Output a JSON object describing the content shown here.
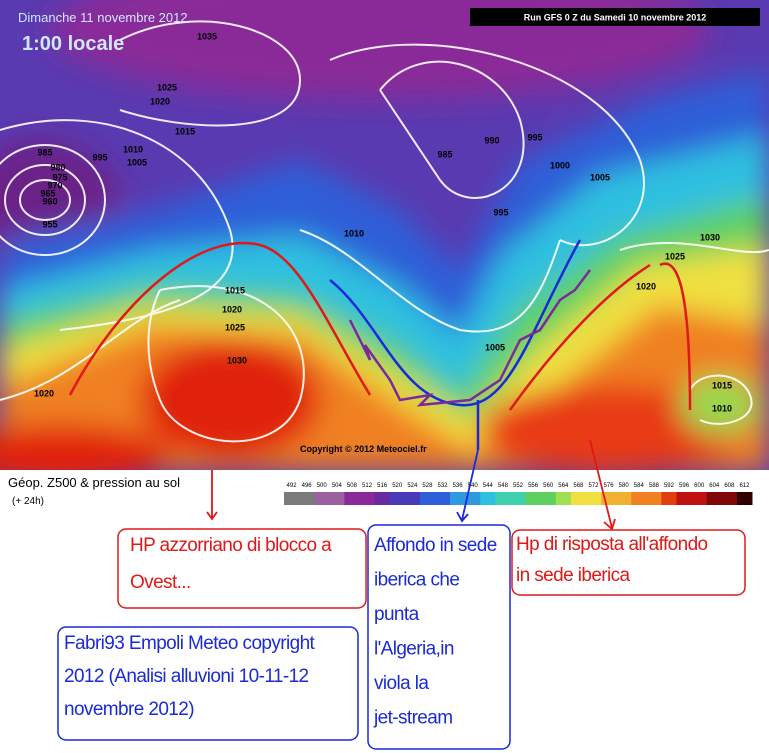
{
  "header": {
    "date": "Dimanche 11 novembre 2012",
    "time": "1:00 locale",
    "run": "Run GFS 0 Z du Samedi 10 novembre 2012",
    "copyright": "Copyright © 2012 Meteociel.fr"
  },
  "legend": {
    "title": "Géop. Z500 & pression au sol",
    "subtitle": "(+ 24h)",
    "scale": [
      492,
      496,
      500,
      504,
      508,
      512,
      516,
      520,
      524,
      528,
      532,
      536,
      540,
      544,
      548,
      552,
      556,
      560,
      564,
      568,
      572,
      576,
      580,
      584,
      588,
      592,
      596,
      600,
      604,
      608,
      612
    ]
  },
  "isobars": [
    1035,
    1025,
    1020,
    1015,
    985,
    980,
    975,
    970,
    965,
    960,
    955,
    995,
    1010,
    1005,
    985,
    990,
    995,
    1000,
    1005,
    995,
    1010,
    1015,
    1020,
    1025,
    1030,
    1020,
    1005,
    1025,
    1030,
    1020,
    1015,
    1010
  ],
  "annotations": [
    {
      "lines": [
        "HP azzorriano di blocco a",
        "Ovest..."
      ]
    },
    {
      "lines": [
        "Affondo in sede",
        "iberica che",
        "punta",
        "l'Algeria,in",
        "viola la",
        "jet-stream"
      ]
    },
    {
      "lines": [
        "Hp di risposta all'affondo",
        "in sede iberica"
      ]
    },
    {
      "lines": [
        "Fabri93 Empoli Meteo copyright",
        "2012 (Analisi alluvioni 10-11-12",
        "novembre 2012)"
      ]
    }
  ]
}
